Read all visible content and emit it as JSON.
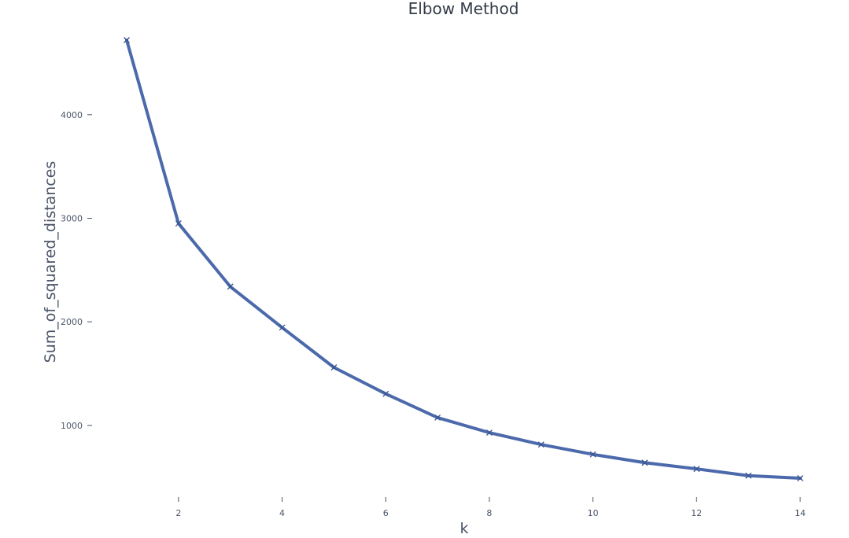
{
  "chart_data": {
    "type": "line",
    "title": "Elbow Method",
    "xlabel": "k",
    "ylabel": "Sum_of_squared_distances",
    "x": [
      1,
      2,
      3,
      4,
      5,
      6,
      7,
      8,
      9,
      10,
      11,
      12,
      13,
      14
    ],
    "series": [
      {
        "values": [
          4720,
          2950,
          2340,
          1945,
          1560,
          1305,
          1075,
          930,
          815,
          720,
          640,
          580,
          515,
          490
        ],
        "color": "#4c6aab",
        "marker": "x"
      }
    ],
    "xticks": [
      2,
      4,
      6,
      8,
      10,
      12,
      14
    ],
    "xtick_labels": [
      "2",
      "4",
      "6",
      "8",
      "10",
      "12",
      "14"
    ],
    "yticks": [
      1000,
      2000,
      3000,
      4000
    ],
    "ytick_labels": [
      "1000",
      "2000",
      "3000",
      "4000"
    ],
    "xlim": [
      1,
      14
    ],
    "ylim": [
      490,
      4720
    ],
    "grid": false,
    "legend": false
  }
}
